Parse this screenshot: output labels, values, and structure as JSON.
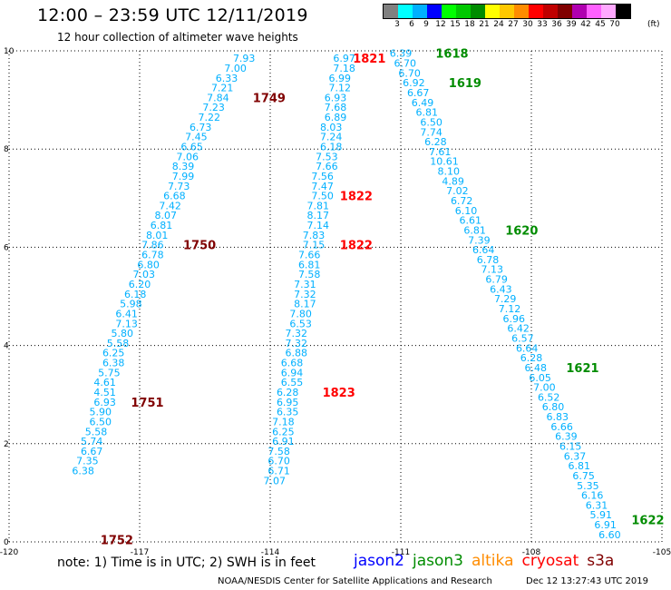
{
  "header": {
    "title": "12:00 – 23:59 UTC 12/11/2019",
    "subtitle": "12 hour collection of altimeter wave heights"
  },
  "legend": {
    "levels": [
      "3",
      "6",
      "9",
      "12",
      "15",
      "18",
      "21",
      "24",
      "27",
      "30",
      "33",
      "36",
      "39",
      "42",
      "45",
      "70"
    ],
    "unit": "(ft)",
    "colors": [
      "#808080",
      "#00ffff",
      "#00b0ff",
      "#0000ff",
      "#00ff00",
      "#00c800",
      "#008c00",
      "#ffff00",
      "#ffc800",
      "#ff8c00",
      "#ff0000",
      "#c00000",
      "#800000",
      "#b000b0",
      "#ff60ff",
      "#ffa8ff",
      "#000000"
    ]
  },
  "footer": {
    "note": "note: 1) Time is in UTC; 2) SWH is in feet",
    "missions": [
      {
        "name": "jason2",
        "color": "#0000ff"
      },
      {
        "name": "jason3",
        "color": "#008c00"
      },
      {
        "name": "altika",
        "color": "#ff8c00"
      },
      {
        "name": "cryosat",
        "color": "#ff0000"
      },
      {
        "name": "s3a",
        "color": "#800000"
      }
    ],
    "credit": "NOAA/NESDIS Center for Satellite Applications and Research",
    "timestamp": "Dec 12 13:27:43 UTC 2019"
  },
  "chart_data": {
    "type": "scatter",
    "title": "12:00 – 23:59 UTC 12/11/2019",
    "xlim": [
      -120,
      -105
    ],
    "ylim": [
      0,
      10
    ],
    "xticks": [
      "-120",
      "-117",
      "-114",
      "-111",
      "-108",
      "-105"
    ],
    "yticks": [
      "0",
      "2",
      "4",
      "6",
      "8",
      "10"
    ],
    "grid": true,
    "value_color": "#00b0ff",
    "series": [
      {
        "name": "s3a",
        "color": "#800000",
        "points": [
          {
            "x": -114.6,
            "y": 9.85,
            "v": "7.93"
          },
          {
            "x": -114.8,
            "y": 9.65,
            "v": "7.00"
          },
          {
            "x": -115.0,
            "y": 9.45,
            "v": "6.33"
          },
          {
            "x": -115.1,
            "y": 9.25,
            "v": "7.21"
          },
          {
            "x": -115.2,
            "y": 9.05,
            "v": "7.84"
          },
          {
            "x": -115.3,
            "y": 8.85,
            "v": "7.23"
          },
          {
            "x": -115.4,
            "y": 8.65,
            "v": "7.22"
          },
          {
            "x": -115.6,
            "y": 8.45,
            "v": "6.73"
          },
          {
            "x": -115.7,
            "y": 8.25,
            "v": "7.45"
          },
          {
            "x": -115.8,
            "y": 8.05,
            "v": "6.65"
          },
          {
            "x": -115.9,
            "y": 7.85,
            "v": "7.06"
          },
          {
            "x": -116.0,
            "y": 7.65,
            "v": "8.39"
          },
          {
            "x": -116.0,
            "y": 7.45,
            "v": "7.99"
          },
          {
            "x": -116.1,
            "y": 7.25,
            "v": "7.73"
          },
          {
            "x": -116.2,
            "y": 7.05,
            "v": "6.68"
          },
          {
            "x": -116.3,
            "y": 6.85,
            "v": "7.42"
          },
          {
            "x": -116.4,
            "y": 6.65,
            "v": "8.07"
          },
          {
            "x": -116.5,
            "y": 6.45,
            "v": "6.81"
          },
          {
            "x": -116.6,
            "y": 6.25,
            "v": "8.01"
          },
          {
            "x": -116.7,
            "y": 6.05,
            "v": "7.86"
          },
          {
            "x": -116.7,
            "y": 5.85,
            "v": "6.78"
          },
          {
            "x": -116.8,
            "y": 5.65,
            "v": "6.80"
          },
          {
            "x": -116.9,
            "y": 5.45,
            "v": "7.03"
          },
          {
            "x": -117.0,
            "y": 5.25,
            "v": "6.20"
          },
          {
            "x": -117.1,
            "y": 5.05,
            "v": "6.18"
          },
          {
            "x": -117.2,
            "y": 4.85,
            "v": "5.98"
          },
          {
            "x": -117.3,
            "y": 4.65,
            "v": "6.41"
          },
          {
            "x": -117.3,
            "y": 4.45,
            "v": "7.13"
          },
          {
            "x": -117.4,
            "y": 4.25,
            "v": "5.80"
          },
          {
            "x": -117.5,
            "y": 4.05,
            "v": "5.58"
          },
          {
            "x": -117.6,
            "y": 3.85,
            "v": "6.25"
          },
          {
            "x": -117.6,
            "y": 3.65,
            "v": "6.38"
          },
          {
            "x": -117.7,
            "y": 3.45,
            "v": "5.75"
          },
          {
            "x": -117.8,
            "y": 3.25,
            "v": "4.61"
          },
          {
            "x": -117.8,
            "y": 3.05,
            "v": "4.51"
          },
          {
            "x": -117.8,
            "y": 2.85,
            "v": "6.93"
          },
          {
            "x": -117.9,
            "y": 2.65,
            "v": "5.90"
          },
          {
            "x": -117.9,
            "y": 2.45,
            "v": "6.50"
          },
          {
            "x": -118.0,
            "y": 2.25,
            "v": "5.58"
          },
          {
            "x": -118.1,
            "y": 2.05,
            "v": "5.74"
          },
          {
            "x": -118.1,
            "y": 1.85,
            "v": "6.67"
          },
          {
            "x": -118.2,
            "y": 1.65,
            "v": "7.35"
          },
          {
            "x": -118.3,
            "y": 1.45,
            "v": "6.38"
          }
        ]
      },
      {
        "name": "cryosat",
        "color": "#ff0000",
        "points": [
          {
            "x": -112.3,
            "y": 9.85,
            "v": "6.97"
          },
          {
            "x": -112.3,
            "y": 9.65,
            "v": "7.18"
          },
          {
            "x": -112.4,
            "y": 9.45,
            "v": "6.99"
          },
          {
            "x": -112.4,
            "y": 9.25,
            "v": "7.12"
          },
          {
            "x": -112.5,
            "y": 9.05,
            "v": "6.93"
          },
          {
            "x": -112.5,
            "y": 8.85,
            "v": "7.68"
          },
          {
            "x": -112.5,
            "y": 8.65,
            "v": "6.89"
          },
          {
            "x": -112.6,
            "y": 8.45,
            "v": "8.03"
          },
          {
            "x": -112.6,
            "y": 8.25,
            "v": "7.24"
          },
          {
            "x": -112.6,
            "y": 8.05,
            "v": "6.18"
          },
          {
            "x": -112.7,
            "y": 7.85,
            "v": "7.53"
          },
          {
            "x": -112.7,
            "y": 7.65,
            "v": "7.66"
          },
          {
            "x": -112.8,
            "y": 7.45,
            "v": "7.56"
          },
          {
            "x": -112.8,
            "y": 7.25,
            "v": "7.47"
          },
          {
            "x": -112.8,
            "y": 7.05,
            "v": "7.50"
          },
          {
            "x": -112.9,
            "y": 6.85,
            "v": "7.81"
          },
          {
            "x": -112.9,
            "y": 6.65,
            "v": "8.17"
          },
          {
            "x": -112.9,
            "y": 6.45,
            "v": "7.14"
          },
          {
            "x": -113.0,
            "y": 6.25,
            "v": "7.83"
          },
          {
            "x": -113.0,
            "y": 6.05,
            "v": "7.15"
          },
          {
            "x": -113.1,
            "y": 5.85,
            "v": "7.66"
          },
          {
            "x": -113.1,
            "y": 5.65,
            "v": "6.81"
          },
          {
            "x": -113.1,
            "y": 5.45,
            "v": "7.58"
          },
          {
            "x": -113.2,
            "y": 5.25,
            "v": "7.31"
          },
          {
            "x": -113.2,
            "y": 5.05,
            "v": "7.32"
          },
          {
            "x": -113.2,
            "y": 4.85,
            "v": "8.17"
          },
          {
            "x": -113.3,
            "y": 4.65,
            "v": "7.80"
          },
          {
            "x": -113.3,
            "y": 4.45,
            "v": "6.53"
          },
          {
            "x": -113.4,
            "y": 4.25,
            "v": "7.32"
          },
          {
            "x": -113.4,
            "y": 4.05,
            "v": "7.32"
          },
          {
            "x": -113.4,
            "y": 3.85,
            "v": "6.88"
          },
          {
            "x": -113.5,
            "y": 3.65,
            "v": "6.68"
          },
          {
            "x": -113.5,
            "y": 3.45,
            "v": "6.94"
          },
          {
            "x": -113.5,
            "y": 3.25,
            "v": "6.55"
          },
          {
            "x": -113.6,
            "y": 3.05,
            "v": "6.28"
          },
          {
            "x": -113.6,
            "y": 2.85,
            "v": "6.95"
          },
          {
            "x": -113.6,
            "y": 2.65,
            "v": "6.35"
          },
          {
            "x": -113.7,
            "y": 2.45,
            "v": "7.18"
          },
          {
            "x": -113.7,
            "y": 2.25,
            "v": "6.25"
          },
          {
            "x": -113.7,
            "y": 2.05,
            "v": "6.91"
          },
          {
            "x": -113.8,
            "y": 1.85,
            "v": "7.58"
          },
          {
            "x": -113.8,
            "y": 1.65,
            "v": "6.70"
          },
          {
            "x": -113.8,
            "y": 1.45,
            "v": "6.71"
          },
          {
            "x": -113.9,
            "y": 1.25,
            "v": "7.07"
          }
        ]
      },
      {
        "name": "jason3",
        "color": "#008c00",
        "points": [
          {
            "x": -111.0,
            "y": 9.95,
            "v": "6.39"
          },
          {
            "x": -110.9,
            "y": 9.75,
            "v": "6.70"
          },
          {
            "x": -110.8,
            "y": 9.55,
            "v": "6.70"
          },
          {
            "x": -110.7,
            "y": 9.35,
            "v": "6.92"
          },
          {
            "x": -110.6,
            "y": 9.15,
            "v": "6.67"
          },
          {
            "x": -110.5,
            "y": 8.95,
            "v": "6.49"
          },
          {
            "x": -110.4,
            "y": 8.75,
            "v": "6.81"
          },
          {
            "x": -110.3,
            "y": 8.55,
            "v": "6.50"
          },
          {
            "x": -110.3,
            "y": 8.35,
            "v": "7.74"
          },
          {
            "x": -110.2,
            "y": 8.15,
            "v": "6.28"
          },
          {
            "x": -110.1,
            "y": 7.95,
            "v": "7.61"
          },
          {
            "x": -110.0,
            "y": 7.75,
            "v": "10.61"
          },
          {
            "x": -109.9,
            "y": 7.55,
            "v": "8.10"
          },
          {
            "x": -109.8,
            "y": 7.35,
            "v": "4.89"
          },
          {
            "x": -109.7,
            "y": 7.15,
            "v": "7.02"
          },
          {
            "x": -109.6,
            "y": 6.95,
            "v": "6.72"
          },
          {
            "x": -109.5,
            "y": 6.75,
            "v": "6.10"
          },
          {
            "x": -109.4,
            "y": 6.55,
            "v": "6.61"
          },
          {
            "x": -109.3,
            "y": 6.35,
            "v": "6.81"
          },
          {
            "x": -109.2,
            "y": 6.15,
            "v": "7.39"
          },
          {
            "x": -109.1,
            "y": 5.95,
            "v": "6.64"
          },
          {
            "x": -109.0,
            "y": 5.75,
            "v": "6.78"
          },
          {
            "x": -108.9,
            "y": 5.55,
            "v": "7.13"
          },
          {
            "x": -108.8,
            "y": 5.35,
            "v": "6.79"
          },
          {
            "x": -108.7,
            "y": 5.15,
            "v": "6.43"
          },
          {
            "x": -108.6,
            "y": 4.95,
            "v": "7.29"
          },
          {
            "x": -108.5,
            "y": 4.75,
            "v": "7.12"
          },
          {
            "x": -108.4,
            "y": 4.55,
            "v": "6.96"
          },
          {
            "x": -108.3,
            "y": 4.35,
            "v": "6.42"
          },
          {
            "x": -108.2,
            "y": 4.15,
            "v": "6.57"
          },
          {
            "x": -108.1,
            "y": 3.95,
            "v": "6.64"
          },
          {
            "x": -108.0,
            "y": 3.75,
            "v": "6.28"
          },
          {
            "x": -107.9,
            "y": 3.55,
            "v": "6.48"
          },
          {
            "x": -107.8,
            "y": 3.35,
            "v": "6.05"
          },
          {
            "x": -107.7,
            "y": 3.15,
            "v": "7.00"
          },
          {
            "x": -107.6,
            "y": 2.95,
            "v": "6.52"
          },
          {
            "x": -107.5,
            "y": 2.75,
            "v": "6.80"
          },
          {
            "x": -107.4,
            "y": 2.55,
            "v": "6.83"
          },
          {
            "x": -107.3,
            "y": 2.35,
            "v": "6.66"
          },
          {
            "x": -107.2,
            "y": 2.15,
            "v": "6.39"
          },
          {
            "x": -107.1,
            "y": 1.95,
            "v": "6.15"
          },
          {
            "x": -107.0,
            "y": 1.75,
            "v": "6.37"
          },
          {
            "x": -106.9,
            "y": 1.55,
            "v": "6.81"
          },
          {
            "x": -106.8,
            "y": 1.35,
            "v": "6.75"
          },
          {
            "x": -106.7,
            "y": 1.15,
            "v": "5.35"
          },
          {
            "x": -106.6,
            "y": 0.95,
            "v": "6.16"
          },
          {
            "x": -106.5,
            "y": 0.75,
            "v": "6.31"
          },
          {
            "x": -106.4,
            "y": 0.55,
            "v": "5.91"
          },
          {
            "x": -106.3,
            "y": 0.35,
            "v": "6.91"
          },
          {
            "x": -106.2,
            "y": 0.15,
            "v": "6.60"
          }
        ]
      }
    ],
    "time_labels": [
      {
        "text": "1749",
        "x": -114.4,
        "y": 9.05,
        "color": "#800000"
      },
      {
        "text": "1750",
        "x": -116.0,
        "y": 6.05,
        "color": "#800000"
      },
      {
        "text": "1751",
        "x": -117.2,
        "y": 2.85,
        "color": "#800000"
      },
      {
        "text": "1752",
        "x": -117.9,
        "y": 0.05,
        "color": "#800000"
      },
      {
        "text": "1821",
        "x": -112.1,
        "y": 9.85,
        "color": "#ff0000"
      },
      {
        "text": "1822",
        "x": -112.4,
        "y": 7.05,
        "color": "#ff0000"
      },
      {
        "text": "1822",
        "x": -112.4,
        "y": 6.05,
        "color": "#ff0000"
      },
      {
        "text": "1823",
        "x": -112.8,
        "y": 3.05,
        "color": "#ff0000"
      },
      {
        "text": "1618",
        "x": -110.2,
        "y": 9.95,
        "color": "#008c00"
      },
      {
        "text": "1619",
        "x": -109.9,
        "y": 9.35,
        "color": "#008c00"
      },
      {
        "text": "1620",
        "x": -108.6,
        "y": 6.35,
        "color": "#008c00"
      },
      {
        "text": "1621",
        "x": -107.2,
        "y": 3.55,
        "color": "#008c00"
      },
      {
        "text": "1622",
        "x": -105.7,
        "y": 0.45,
        "color": "#008c00"
      }
    ]
  }
}
